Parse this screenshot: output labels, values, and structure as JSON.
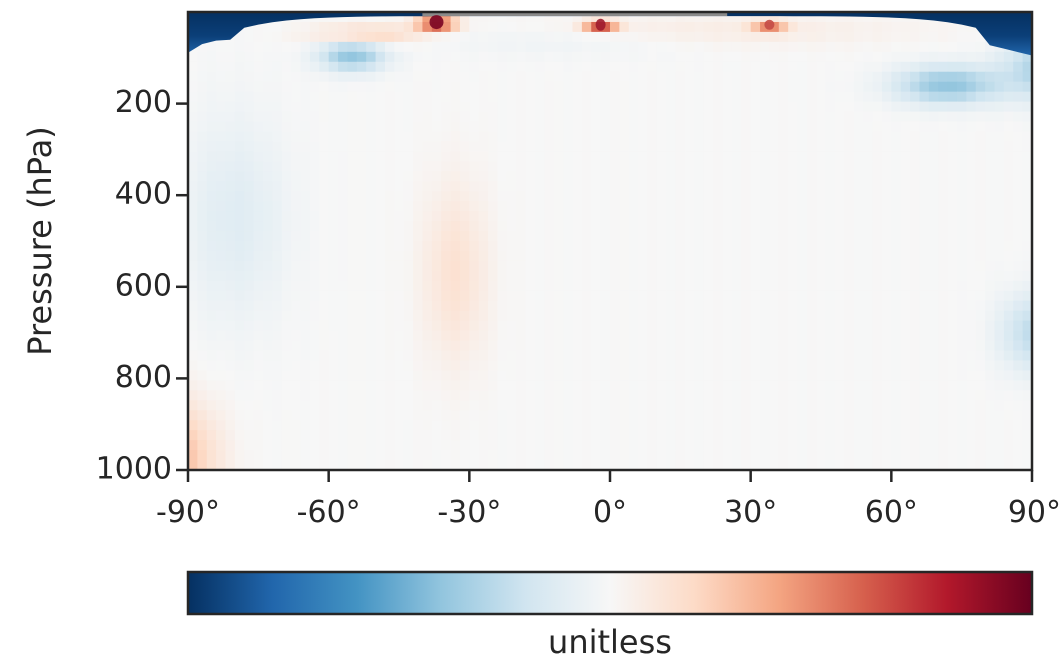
{
  "chart_data": {
    "type": "heatmap",
    "title": "",
    "xlabel": "",
    "ylabel": "Pressure (hPa)",
    "colorbar_label": "unitless",
    "colormap": "RdBu_r",
    "colormap_stops": [
      "#053061",
      "#2166ac",
      "#4393c3",
      "#92c5de",
      "#d1e5f0",
      "#f7f7f7",
      "#fddbc7",
      "#f4a582",
      "#d6604d",
      "#b2182b",
      "#67001f"
    ],
    "xlim": [
      -90,
      90
    ],
    "ylim": [
      1000,
      0
    ],
    "xticks": [
      -90,
      -60,
      -30,
      0,
      30,
      60,
      90
    ],
    "xtick_labels": [
      "-90°",
      "-60°",
      "-30°",
      "0°",
      "30°",
      "60°",
      "90°"
    ],
    "yticks": [
      200,
      400,
      600,
      800,
      1000
    ],
    "ytick_labels": [
      "200",
      "400",
      "600",
      "800",
      "1000"
    ],
    "value_range": [
      -1,
      1
    ],
    "features": [
      {
        "region": "upper levels near poles (top ~80 hPa)",
        "value": -1.0
      },
      {
        "region": "near 10-40 hPa, 37°S",
        "value": 0.95
      },
      {
        "region": "near 10-40 hPa, 2°S",
        "value": 0.7
      },
      {
        "region": "near 20-40 hPa, 34°N",
        "value": 0.45
      },
      {
        "region": "50-120 hPa, 55°S",
        "value": -0.4
      },
      {
        "region": "100-200 hPa, 62°N-90°N",
        "value": -0.4
      },
      {
        "region": "850-1000 hPa, 90°S-80°S",
        "value": 0.3
      },
      {
        "region": "400-700 hPa, 40°S-30°S",
        "value": 0.15
      },
      {
        "region": "620-750 hPa, 85°N-90°N",
        "value": -0.25
      },
      {
        "region": "remainder of troposphere",
        "value": 0.0
      }
    ]
  }
}
